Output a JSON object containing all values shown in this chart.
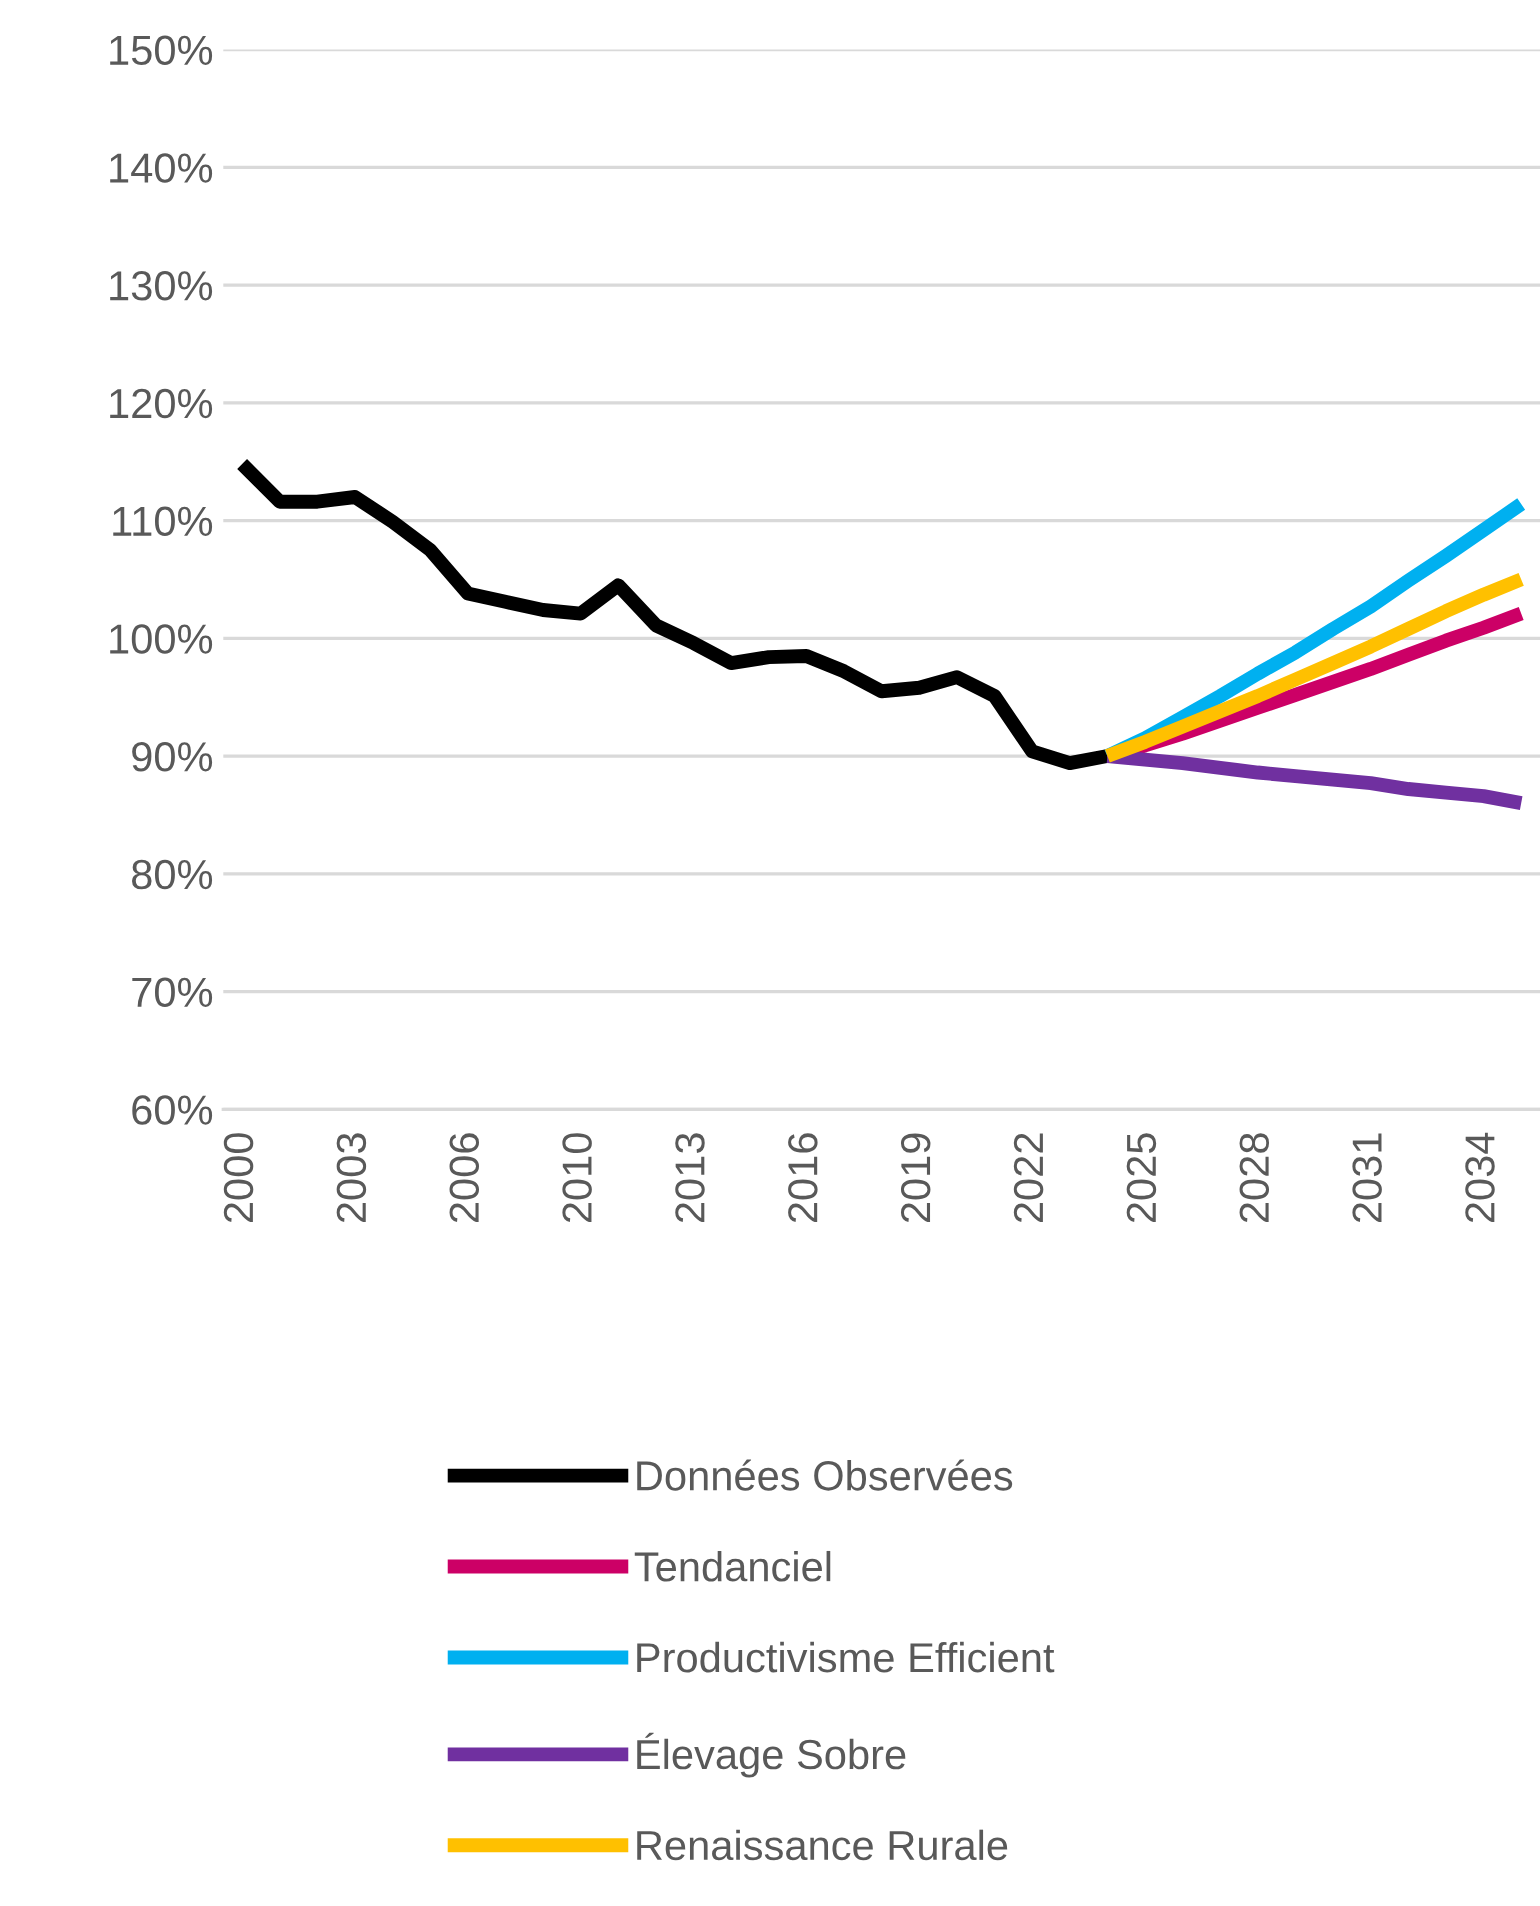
{
  "chart_data": {
    "type": "line",
    "categories": [
      "2000",
      null,
      null,
      "2003",
      null,
      null,
      "2006",
      null,
      null,
      "2010",
      null,
      null,
      "2013",
      null,
      null,
      "2016",
      null,
      null,
      "2019",
      null,
      null,
      "2022",
      null,
      null,
      "2025",
      null,
      null,
      "2028",
      null,
      null,
      "2031",
      null,
      null,
      "2034",
      null
    ],
    "series": [
      {
        "name": "Données Observées",
        "color": "#000000",
        "values": [
          114.8,
          111.6,
          111.6,
          112.0,
          109.9,
          107.5,
          103.8,
          103.1,
          102.4,
          102.1,
          104.5,
          101.1,
          99.6,
          97.9,
          98.4,
          98.5,
          97.2,
          95.5,
          95.8,
          96.7,
          95.1,
          90.4,
          89.4,
          90.0,
          null,
          null,
          null,
          null,
          null,
          null,
          null,
          null,
          null,
          null,
          null
        ]
      },
      {
        "name": "Tendanciel",
        "color": "#cc0066",
        "values": [
          null,
          null,
          null,
          null,
          null,
          null,
          null,
          null,
          null,
          null,
          null,
          null,
          null,
          null,
          null,
          null,
          null,
          null,
          null,
          null,
          null,
          null,
          null,
          90.0,
          90.9,
          91.9,
          93.0,
          94.1,
          95.2,
          96.3,
          97.4,
          98.6,
          99.8,
          100.9,
          102.1
        ]
      },
      {
        "name": "Productivisme Efficient",
        "color": "#00b0f0",
        "values": [
          null,
          null,
          null,
          null,
          null,
          null,
          null,
          null,
          null,
          null,
          null,
          null,
          null,
          null,
          null,
          null,
          null,
          null,
          null,
          null,
          null,
          null,
          null,
          90.0,
          91.5,
          93.3,
          95.1,
          97.0,
          98.8,
          100.8,
          102.7,
          104.9,
          107.0,
          109.2,
          111.4
        ]
      },
      {
        "name": "Élevage Sobre",
        "color": "#7030a0",
        "values": [
          null,
          null,
          null,
          null,
          null,
          null,
          null,
          null,
          null,
          null,
          null,
          null,
          null,
          null,
          null,
          null,
          null,
          null,
          null,
          null,
          null,
          null,
          null,
          90.0,
          89.7,
          89.4,
          89.0,
          88.6,
          88.3,
          88.0,
          87.7,
          87.2,
          86.9,
          86.6,
          86.0
        ]
      },
      {
        "name": "Renaissance Rurale",
        "color": "#ffc000",
        "values": [
          null,
          null,
          null,
          null,
          null,
          null,
          null,
          null,
          null,
          null,
          null,
          null,
          null,
          null,
          null,
          null,
          null,
          null,
          null,
          null,
          null,
          null,
          null,
          90.0,
          91.2,
          92.5,
          93.8,
          95.1,
          96.5,
          97.9,
          99.3,
          100.8,
          102.3,
          103.7,
          105.0
        ]
      }
    ],
    "ylim": [
      60,
      150
    ],
    "yticks": [
      {
        "value": 60,
        "label": "60%"
      },
      {
        "value": 70,
        "label": "70%"
      },
      {
        "value": 80,
        "label": "80%"
      },
      {
        "value": 90,
        "label": "90%"
      },
      {
        "value": 100,
        "label": "100%"
      },
      {
        "value": 110,
        "label": "110%"
      },
      {
        "value": 120,
        "label": "120%"
      },
      {
        "value": 130,
        "label": "130%"
      },
      {
        "value": 140,
        "label": "140%"
      },
      {
        "value": 150,
        "label": "150%"
      }
    ],
    "grid": "y",
    "legend": "bottom",
    "marker": "none",
    "line_style": "solid"
  }
}
